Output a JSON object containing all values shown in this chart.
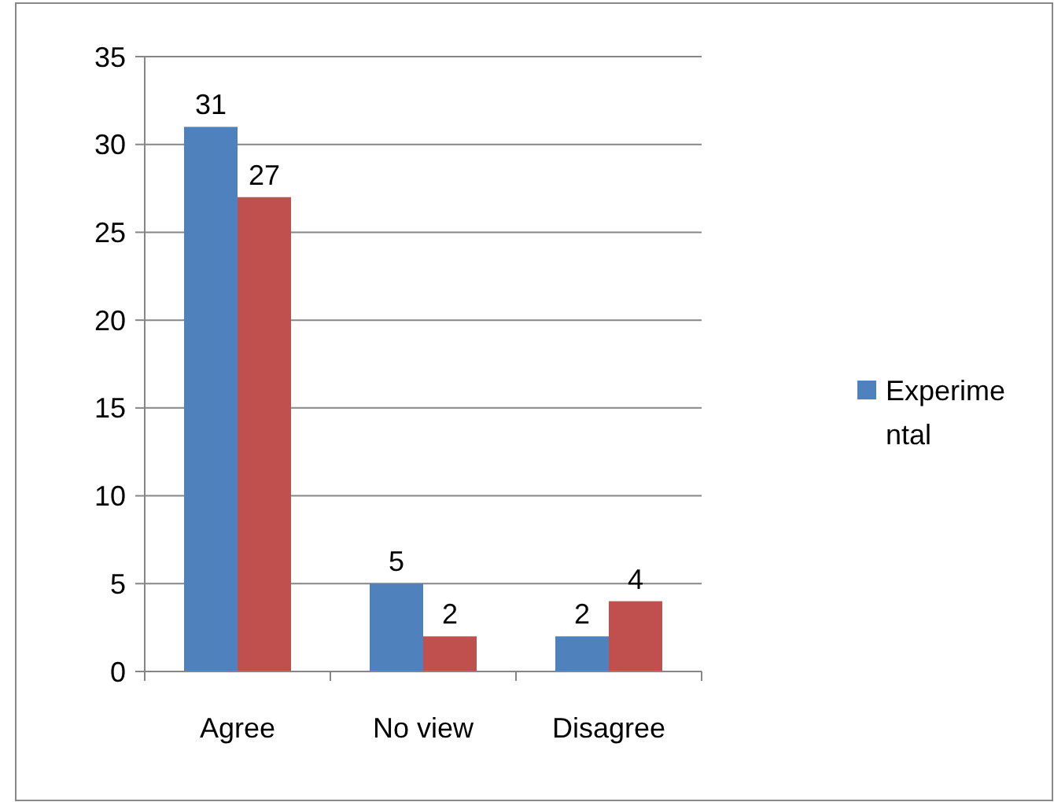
{
  "chart_data": {
    "type": "bar",
    "categories": [
      "Agree",
      "No view",
      "Disagree"
    ],
    "series": [
      {
        "name": "Experimental",
        "color": "#4f81bd",
        "values": [
          31,
          5,
          2
        ]
      },
      {
        "color": "#c0504d",
        "values": [
          27,
          2,
          4
        ]
      }
    ],
    "ylim": [
      0,
      35
    ],
    "yticks": [
      0,
      5,
      10,
      15,
      20,
      25,
      30,
      35
    ],
    "grid": "y",
    "legend": "right",
    "data_labels": true
  }
}
